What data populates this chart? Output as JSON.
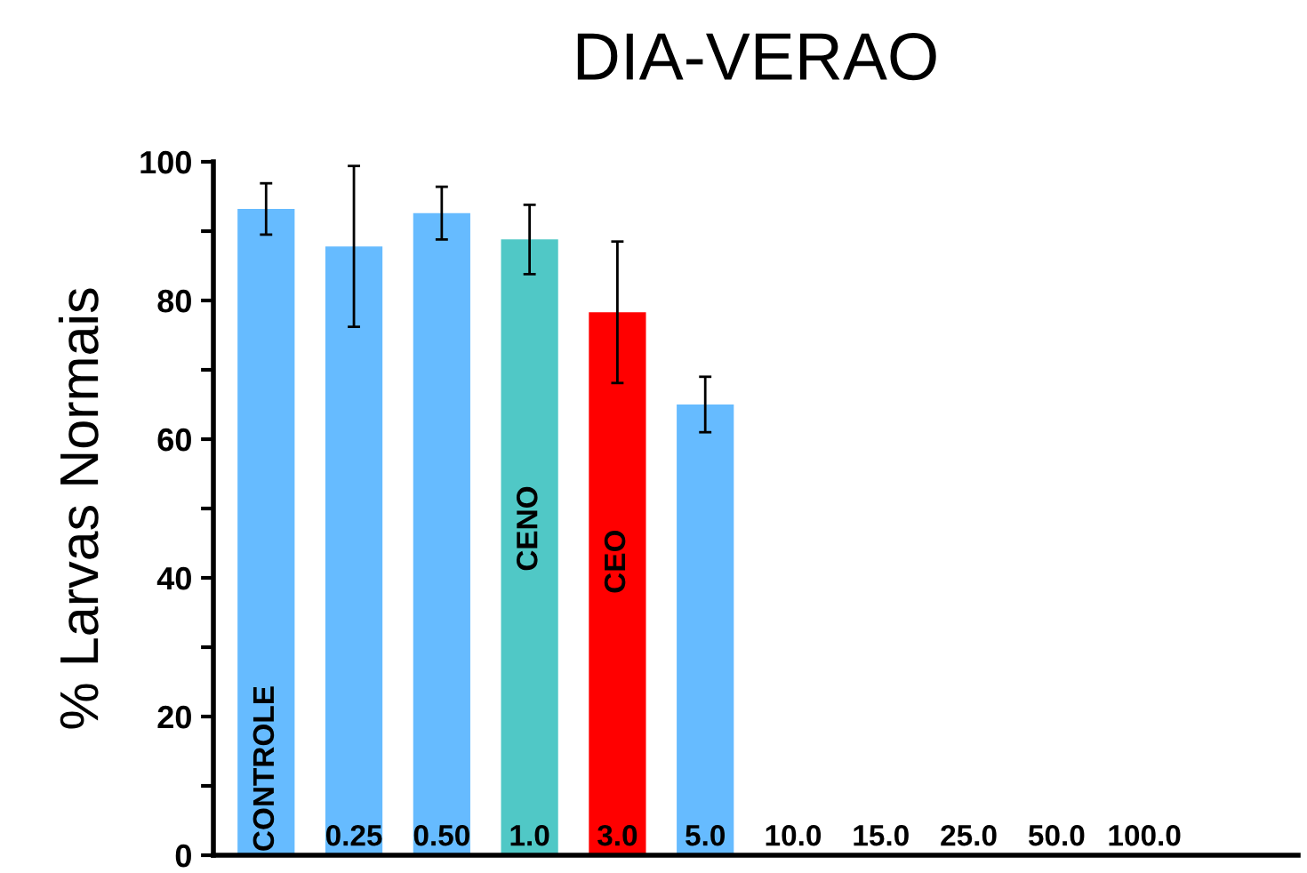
{
  "chart_data": {
    "type": "bar",
    "title": "DIA-VERAO",
    "ylabel": "% Larvas Normais",
    "categories": [
      "CONTROLE",
      "0.25",
      "0.50",
      "1.0",
      "3.0",
      "5.0",
      "10.0",
      "15.0",
      "25.0",
      "50.0",
      "100.0"
    ],
    "values": [
      93.2,
      87.8,
      92.6,
      88.8,
      78.3,
      65.0,
      0,
      0,
      0,
      0,
      0
    ],
    "errors": [
      3.7,
      11.6,
      3.8,
      5,
      10.2,
      4,
      null,
      null,
      null,
      null,
      null
    ],
    "colors": [
      "#66bbff",
      "#66bbff",
      "#66bbff",
      "#50c8c6",
      "#ff0000",
      "#66bbff",
      "#66bbff",
      "#66bbff",
      "#66bbff",
      "#66bbff",
      "#66bbff"
    ],
    "ylim": [
      0,
      100
    ],
    "yticks": [
      0,
      {
        "value": 10,
        "label": null
      },
      20,
      {
        "value": 30,
        "label": null
      },
      40,
      {
        "value": 50,
        "label": null
      },
      60,
      {
        "value": 70,
        "label": null
      },
      80,
      {
        "value": 90,
        "label": null
      },
      100
    ],
    "annotations": [
      "CENO",
      "CEO"
    ],
    "grid": false,
    "legend": false
  }
}
